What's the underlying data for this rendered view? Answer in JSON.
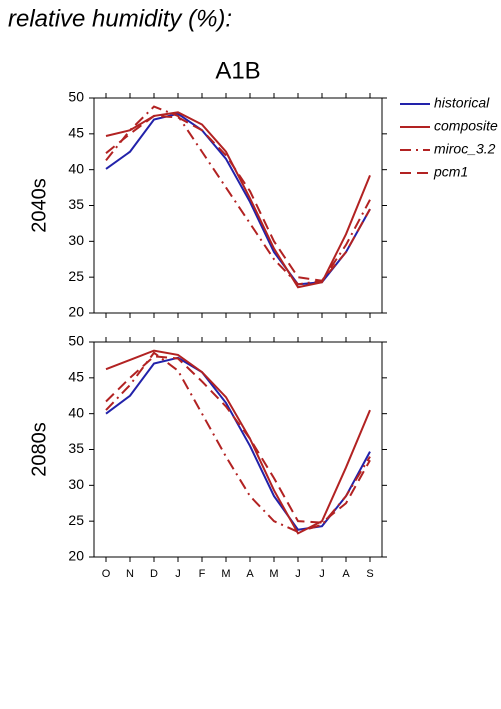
{
  "title": "relative humidity (%):",
  "chart_data": [
    {
      "type": "line",
      "title": "A1B",
      "ylabel": "2040s",
      "categories": [
        "O",
        "N",
        "D",
        "J",
        "F",
        "M",
        "A",
        "M",
        "J",
        "J",
        "A",
        "S"
      ],
      "ylim": [
        20,
        50
      ],
      "yticks": [
        20,
        25,
        30,
        35,
        40,
        45,
        50
      ],
      "series": [
        {
          "name": "historical",
          "color": "#2222aa",
          "linestyle": "solid",
          "values": [
            40.1,
            42.5,
            47.0,
            47.8,
            45.5,
            41.5,
            35.5,
            28.5,
            24.0,
            24.3,
            28.5,
            34.5
          ]
        },
        {
          "name": "composite",
          "color": "#b22222",
          "linestyle": "solid",
          "values": [
            44.7,
            45.5,
            47.5,
            48.0,
            46.3,
            42.5,
            36.0,
            29.0,
            23.6,
            24.3,
            31.0,
            39.2
          ]
        },
        {
          "name": "miroc_3.2",
          "color": "#b22222",
          "linestyle": "dashdot",
          "values": [
            41.3,
            45.5,
            48.8,
            47.5,
            42.5,
            37.5,
            32.5,
            27.5,
            24.0,
            24.5,
            29.5,
            35.8
          ]
        },
        {
          "name": "pcm1",
          "color": "#b22222",
          "linestyle": "dashed",
          "values": [
            42.3,
            45.0,
            47.5,
            47.3,
            45.5,
            42.0,
            37.0,
            30.0,
            25.0,
            24.5,
            28.5,
            34.5
          ]
        }
      ]
    },
    {
      "type": "line",
      "ylabel": "2080s",
      "categories": [
        "O",
        "N",
        "D",
        "J",
        "F",
        "M",
        "A",
        "M",
        "J",
        "J",
        "A",
        "S"
      ],
      "ylim": [
        20,
        50
      ],
      "yticks": [
        20,
        25,
        30,
        35,
        40,
        45,
        50
      ],
      "series": [
        {
          "name": "historical",
          "color": "#2222aa",
          "linestyle": "solid",
          "values": [
            40.0,
            42.5,
            47.0,
            47.8,
            45.8,
            41.5,
            35.5,
            28.5,
            23.8,
            24.3,
            28.5,
            34.7
          ]
        },
        {
          "name": "composite",
          "color": "#b22222",
          "linestyle": "solid",
          "values": [
            46.2,
            47.5,
            48.8,
            48.2,
            45.8,
            42.3,
            36.5,
            29.3,
            23.3,
            25.0,
            32.5,
            40.5
          ]
        },
        {
          "name": "miroc_3.2",
          "color": "#b22222",
          "linestyle": "dashdot",
          "values": [
            40.5,
            44.0,
            48.5,
            46.0,
            40.0,
            34.0,
            28.5,
            25.0,
            23.5,
            24.5,
            28.5,
            34.0
          ]
        },
        {
          "name": "pcm1",
          "color": "#b22222",
          "linestyle": "dashed",
          "values": [
            41.7,
            45.0,
            48.0,
            47.7,
            44.5,
            41.0,
            36.5,
            31.0,
            25.0,
            24.8,
            27.5,
            33.5
          ]
        }
      ]
    }
  ]
}
